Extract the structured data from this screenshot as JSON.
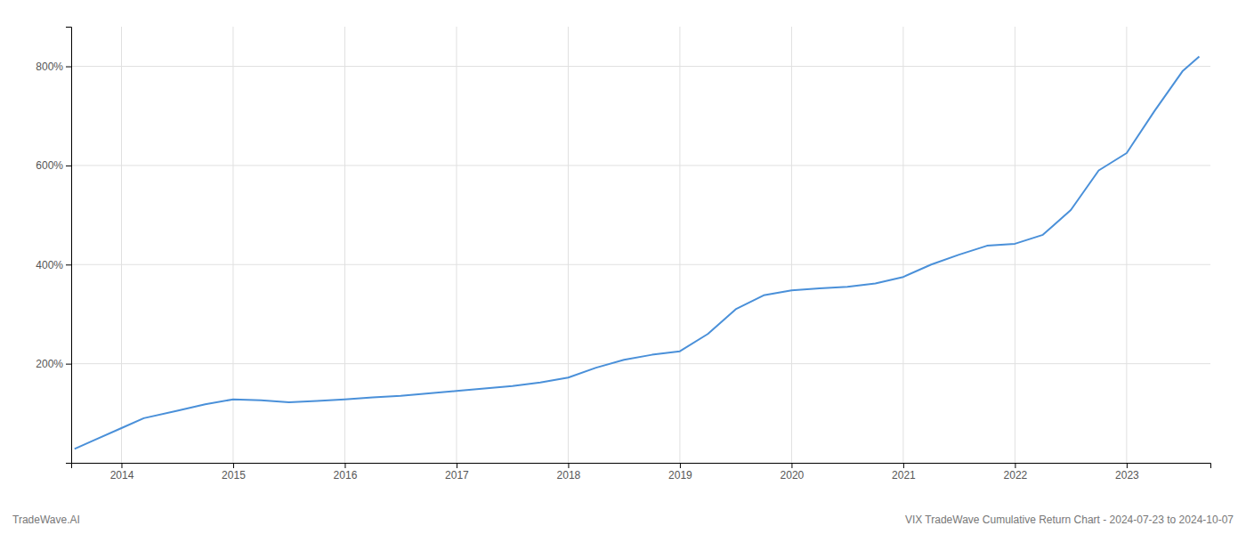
{
  "chart_data": {
    "type": "line",
    "title": "VIX TradeWave Cumulative Return Chart - 2024-07-23 to 2024-10-07",
    "subtitle": "TradeWave.AI",
    "x": [
      2013.58,
      2013.75,
      2014.0,
      2014.2,
      2014.5,
      2014.75,
      2015.0,
      2015.25,
      2015.5,
      2015.75,
      2016.0,
      2016.25,
      2016.5,
      2016.75,
      2017.0,
      2017.25,
      2017.5,
      2017.75,
      2018.0,
      2018.25,
      2018.5,
      2018.75,
      2019.0,
      2019.25,
      2019.5,
      2019.75,
      2020.0,
      2020.25,
      2020.5,
      2020.75,
      2021.0,
      2021.25,
      2021.5,
      2021.75,
      2022.0,
      2022.25,
      2022.5,
      2022.75,
      2023.0,
      2023.25,
      2023.5,
      2023.65
    ],
    "values": [
      28,
      45,
      70,
      90,
      105,
      118,
      128,
      126,
      122,
      125,
      128,
      132,
      135,
      140,
      145,
      150,
      155,
      162,
      172,
      192,
      208,
      218,
      225,
      260,
      310,
      338,
      348,
      352,
      355,
      362,
      375,
      400,
      420,
      438,
      442,
      460,
      510,
      590,
      625,
      710,
      790,
      820
    ],
    "color": "#4a90d9",
    "xlim": [
      2013.55,
      2023.75
    ],
    "xticks": [
      2014,
      2015,
      2016,
      2017,
      2018,
      2019,
      2020,
      2021,
      2022,
      2023
    ],
    "ylim": [
      0,
      880
    ],
    "yticks": [
      {
        "value": 200,
        "label": "200%"
      },
      {
        "value": 400,
        "label": "400%"
      },
      {
        "value": 600,
        "label": "600%"
      },
      {
        "value": 800,
        "label": "800%"
      }
    ],
    "grid": true
  }
}
